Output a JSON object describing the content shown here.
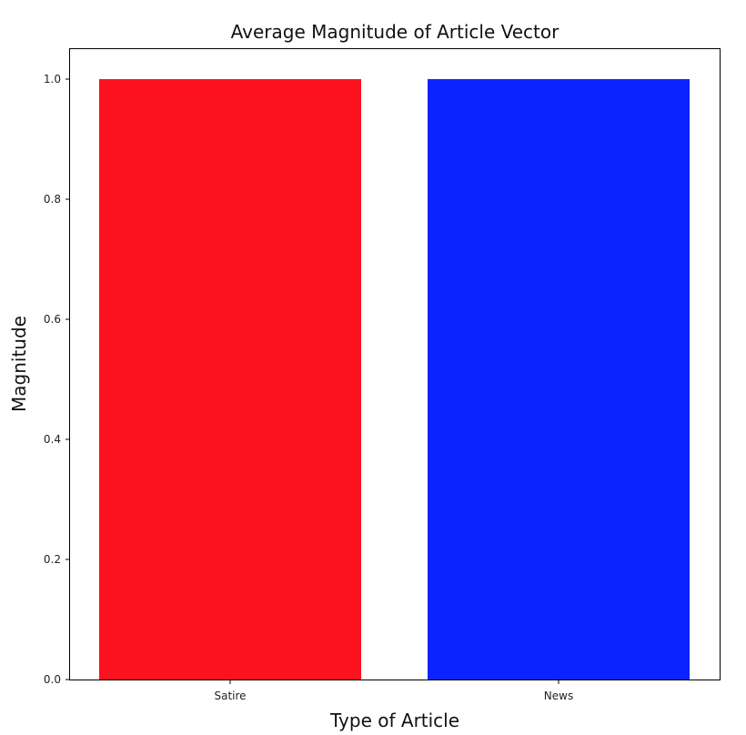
{
  "chart_data": {
    "type": "bar",
    "title": "Average Magnitude of Article Vector",
    "xlabel": "Type of Article",
    "ylabel": "Magnitude",
    "categories": [
      "Satire",
      "News"
    ],
    "values": [
      1.0,
      1.0
    ],
    "colors": [
      "#fc111f",
      "#0c23ff"
    ],
    "ylim": [
      0,
      1.05
    ],
    "yticks": [
      0.0,
      0.2,
      0.4,
      0.6,
      0.8,
      1.0
    ],
    "ytick_labels": [
      "0.0",
      "0.2",
      "0.4",
      "0.6",
      "0.8",
      "1.0"
    ],
    "grid": false,
    "legend": "none"
  }
}
